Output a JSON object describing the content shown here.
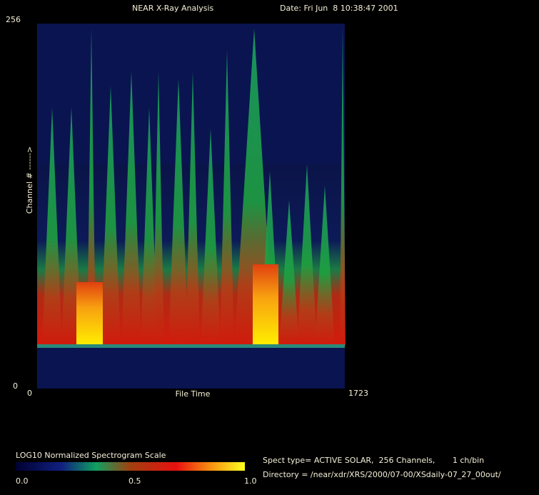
{
  "header": {
    "title": "NEAR X-Ray Analysis",
    "date": "Date: Fri Jun  8 10:38:47 2001"
  },
  "plot": {
    "y_top": "256",
    "y_bottom": "0",
    "y_label": "Channel # ------>",
    "x_left": "0",
    "x_label": "File Time",
    "x_right": "1723"
  },
  "scale": {
    "title": "LOG10 Normalized Spectrogram Scale",
    "labels": [
      "0.0",
      "0.5",
      "1.0"
    ]
  },
  "info": {
    "spect": "Spect type= ACTIVE SOLAR,  256 Channels,       1 ch/bin",
    "directory": "Directory = /near/xdr/XRS/2000/07-00/XSdaily-07_27_00out/"
  }
}
